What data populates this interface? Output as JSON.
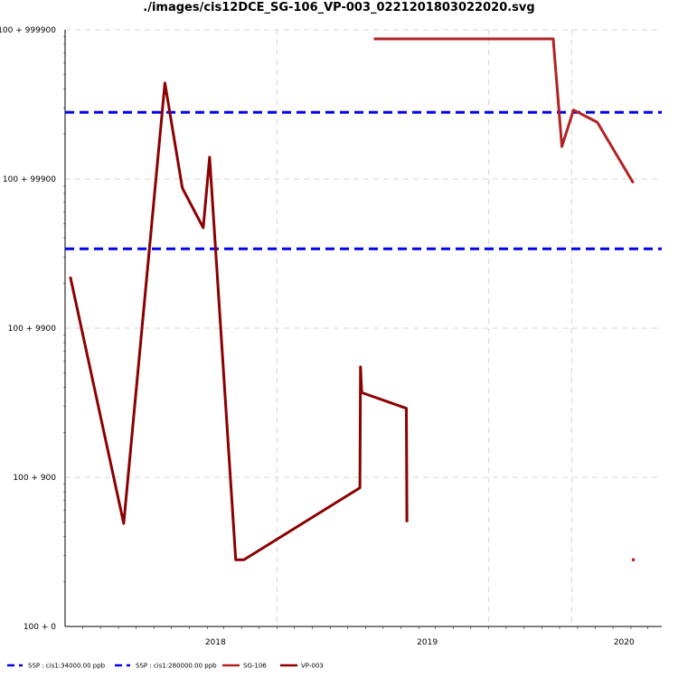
{
  "chart_data": {
    "type": "line",
    "title": "./images/cis12DCE_SG-106_VP-003_0221201803022020.svg",
    "xlabel": "",
    "ylabel": "",
    "y_scale": "log(value - 100)",
    "y_ticks": [
      {
        "value": 0,
        "label": "100 + 0"
      },
      {
        "value": 900,
        "label": "100 + 900"
      },
      {
        "value": 9900,
        "label": "100 + 9900"
      },
      {
        "value": 99900,
        "label": "100 + 99900"
      },
      {
        "value": 999900,
        "label": "100 + 999900"
      }
    ],
    "x_ticks": [
      {
        "value": "2018-02-15",
        "label": "2018"
      },
      {
        "value": "2019-02-15",
        "label": "2019"
      },
      {
        "value": "2020-01-20",
        "label": "2020"
      }
    ],
    "xlim": [
      "2017-06-01",
      "2020-03-25"
    ],
    "grid": true,
    "legend_placement": "bottom-left",
    "series": [
      {
        "name": "SSP : cis1:34000.00 ppb",
        "style": "dashed",
        "color": "#0000ee",
        "x": [
          "2017-06-01",
          "2020-03-25"
        ],
        "y": [
          33900,
          33900
        ]
      },
      {
        "name": "SSP : cis1:280000.00 ppb",
        "style": "dashed",
        "color": "#0000ee",
        "x": [
          "2017-06-01",
          "2020-03-25"
        ],
        "y": [
          279900,
          279900
        ]
      },
      {
        "name": "SG-106",
        "style": "solid",
        "color": "#b22222",
        "x": [
          "2018-11-15",
          "2019-09-20",
          "2019-10-05",
          "2019-10-25",
          "2019-12-05",
          "2020-02-05",
          "2020-02-05"
        ],
        "y": [
          870000,
          870000,
          165000,
          290000,
          240000,
          94000,
          180
        ]
      },
      {
        "name": "VP-003",
        "style": "solid",
        "color": "#8b0000",
        "x": [
          "2017-06-10",
          "2017-09-10",
          "2017-11-20",
          "2017-12-20",
          "2018-01-25",
          "2018-02-05",
          "2018-03-22",
          "2018-04-05",
          "2018-10-22",
          "2018-10-23",
          "2018-10-25",
          "2019-01-10",
          "2019-01-11"
        ],
        "y": [
          22000,
          390,
          440000,
          87000,
          47000,
          140000,
          180,
          180,
          750,
          5400,
          3600,
          2800,
          400
        ]
      }
    ]
  }
}
